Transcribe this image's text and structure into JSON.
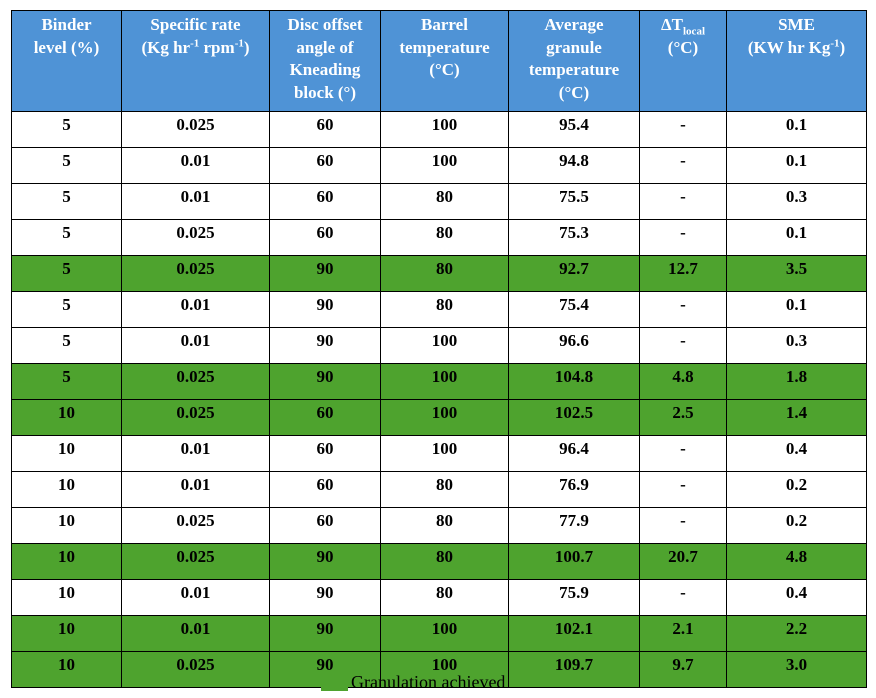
{
  "header": {
    "binder_level": {
      "line1": "Binder",
      "line2": "level (%)"
    },
    "specific_rate": {
      "line1": "Specific rate",
      "open": "(Kg hr",
      "sup1": "-1",
      "mid": " rpm",
      "sup2": "-1",
      "close": ")"
    },
    "disc_offset": {
      "line1": "Disc offset",
      "line2": "angle of",
      "line3": "Kneading",
      "line4": "block (°)"
    },
    "barrel_temp": {
      "line1": "Barrel",
      "line2": "temperature",
      "line3": "(°C)"
    },
    "avg_granule_temp": {
      "line1": "Average",
      "line2": "granule",
      "line3": "temperature",
      "line4": "(°C)"
    },
    "delta_t": {
      "main": "ΔT",
      "sub": "local",
      "line2": "(°C)"
    },
    "sme": {
      "line1": "SME",
      "open": "(KW hr Kg",
      "sup": "-1",
      "close": ")"
    }
  },
  "rows": [
    {
      "binder": "5",
      "rate": "0.025",
      "angle": "60",
      "barrel": "100",
      "avg": "95.4",
      "dt": "-",
      "sme": "0.1",
      "granulated": false
    },
    {
      "binder": "5",
      "rate": "0.01",
      "angle": "60",
      "barrel": "100",
      "avg": "94.8",
      "dt": "-",
      "sme": "0.1",
      "granulated": false
    },
    {
      "binder": "5",
      "rate": "0.01",
      "angle": "60",
      "barrel": "80",
      "avg": "75.5",
      "dt": "-",
      "sme": "0.3",
      "granulated": false
    },
    {
      "binder": "5",
      "rate": "0.025",
      "angle": "60",
      "barrel": "80",
      "avg": "75.3",
      "dt": "-",
      "sme": "0.1",
      "granulated": false
    },
    {
      "binder": "5",
      "rate": "0.025",
      "angle": "90",
      "barrel": "80",
      "avg": "92.7",
      "dt": "12.7",
      "sme": "3.5",
      "granulated": true
    },
    {
      "binder": "5",
      "rate": "0.01",
      "angle": "90",
      "barrel": "80",
      "avg": "75.4",
      "dt": "-",
      "sme": "0.1",
      "granulated": false
    },
    {
      "binder": "5",
      "rate": "0.01",
      "angle": "90",
      "barrel": "100",
      "avg": "96.6",
      "dt": "-",
      "sme": "0.3",
      "granulated": false
    },
    {
      "binder": "5",
      "rate": "0.025",
      "angle": "90",
      "barrel": "100",
      "avg": "104.8",
      "dt": "4.8",
      "sme": "1.8",
      "granulated": true
    },
    {
      "binder": "10",
      "rate": "0.025",
      "angle": "60",
      "barrel": "100",
      "avg": "102.5",
      "dt": "2.5",
      "sme": "1.4",
      "granulated": true
    },
    {
      "binder": "10",
      "rate": "0.01",
      "angle": "60",
      "barrel": "100",
      "avg": "96.4",
      "dt": "-",
      "sme": "0.4",
      "granulated": false
    },
    {
      "binder": "10",
      "rate": "0.01",
      "angle": "60",
      "barrel": "80",
      "avg": "76.9",
      "dt": "-",
      "sme": "0.2",
      "granulated": false
    },
    {
      "binder": "10",
      "rate": "0.025",
      "angle": "60",
      "barrel": "80",
      "avg": "77.9",
      "dt": "-",
      "sme": "0.2",
      "granulated": false
    },
    {
      "binder": "10",
      "rate": "0.025",
      "angle": "90",
      "barrel": "80",
      "avg": "100.7",
      "dt": "20.7",
      "sme": "4.8",
      "granulated": true
    },
    {
      "binder": "10",
      "rate": "0.01",
      "angle": "90",
      "barrel": "80",
      "avg": "75.9",
      "dt": "-",
      "sme": "0.4",
      "granulated": false
    },
    {
      "binder": "10",
      "rate": "0.01",
      "angle": "90",
      "barrel": "100",
      "avg": "102.1",
      "dt": "2.1",
      "sme": "2.2",
      "granulated": true
    },
    {
      "binder": "10",
      "rate": "0.025",
      "angle": "90",
      "barrel": "100",
      "avg": "109.7",
      "dt": "9.7",
      "sme": "3.0",
      "granulated": true
    }
  ],
  "legend": {
    "label": "Granulation achieved",
    "color": "#4ea32e"
  },
  "colors": {
    "header_bg": "#4f93d6",
    "granulated_bg": "#4ea32e"
  }
}
